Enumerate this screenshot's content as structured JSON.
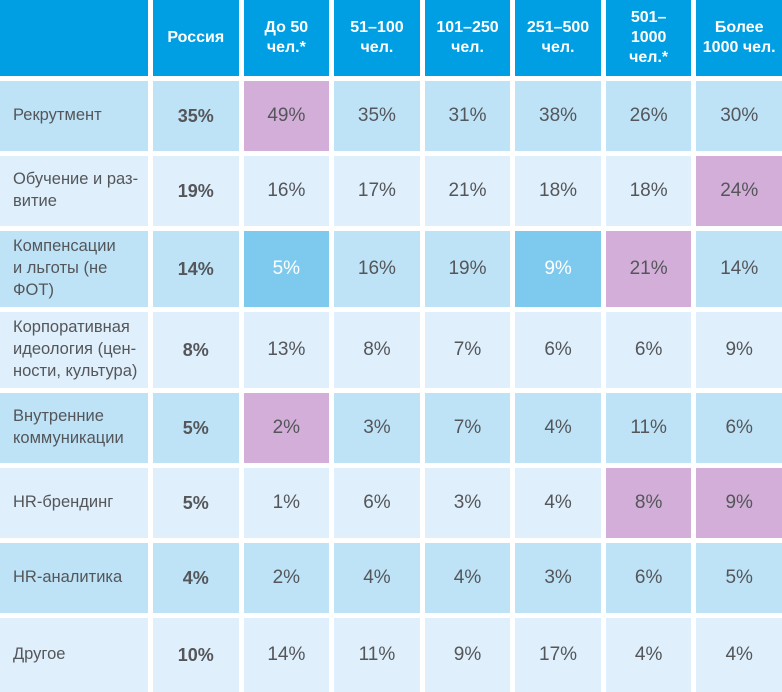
{
  "table": {
    "header": [
      "",
      "Россия",
      "До 50\nчел.*",
      "51–100\nчел.",
      "101–250\nчел.",
      "251–500\nчел.",
      "501–\n1000\nчел.*",
      "Более\n1000 чел."
    ],
    "rows": [
      {
        "label": "Рекрутмент",
        "values": [
          "35%",
          "49%",
          "35%",
          "31%",
          "38%",
          "26%",
          "30%"
        ]
      },
      {
        "label": "Обучение и раз-\nвитие",
        "values": [
          "19%",
          "16%",
          "17%",
          "21%",
          "18%",
          "18%",
          "24%"
        ]
      },
      {
        "label": "Компенсации\nи льготы (не\nФОТ)",
        "values": [
          "14%",
          "5%",
          "16%",
          "19%",
          "9%",
          "21%",
          "14%"
        ]
      },
      {
        "label": "Корпоративная\nидеология (цен-\nности, культура)",
        "values": [
          "8%",
          "13%",
          "8%",
          "7%",
          "6%",
          "6%",
          "9%"
        ]
      },
      {
        "label": "Внутренние\nкоммуникации",
        "values": [
          "5%",
          "2%",
          "3%",
          "7%",
          "4%",
          "11%",
          "6%"
        ]
      },
      {
        "label": "HR-брендинг",
        "values": [
          "5%",
          "1%",
          "6%",
          "3%",
          "4%",
          "8%",
          "9%"
        ]
      },
      {
        "label": "HR-аналитика",
        "values": [
          "4%",
          "2%",
          "4%",
          "4%",
          "3%",
          "6%",
          "5%"
        ]
      },
      {
        "label": "Другое",
        "values": [
          "10%",
          "14%",
          "11%",
          "9%",
          "17%",
          "4%",
          "4%"
        ]
      }
    ]
  },
  "colors": {
    "header_bg": "#009ee2",
    "row_dark": "#bee3f7",
    "row_light": "#dfeffb",
    "highlight_pink": "#d3aed8",
    "highlight_blue": "#7ecaee",
    "text": "#54565a",
    "header_text": "#ffffff"
  },
  "chart_data": {
    "type": "table",
    "title": "",
    "columns": [
      "Россия",
      "До 50 чел.*",
      "51–100 чел.",
      "101–250 чел.",
      "251–500 чел.",
      "501–1000 чел.*",
      "Более 1000 чел."
    ],
    "rows": [
      "Рекрутмент",
      "Обучение и развитие",
      "Компенсации и льготы (не ФОТ)",
      "Корпоративная идеология (ценности, культура)",
      "Внутренние коммуникации",
      "HR-брендинг",
      "HR-аналитика",
      "Другое"
    ],
    "values_percent": [
      [
        35,
        49,
        35,
        31,
        38,
        26,
        30
      ],
      [
        19,
        16,
        17,
        21,
        18,
        18,
        24
      ],
      [
        14,
        5,
        16,
        19,
        9,
        21,
        14
      ],
      [
        8,
        13,
        8,
        7,
        6,
        6,
        9
      ],
      [
        5,
        2,
        3,
        7,
        4,
        11,
        6
      ],
      [
        5,
        1,
        6,
        3,
        4,
        8,
        9
      ],
      [
        4,
        2,
        4,
        4,
        3,
        6,
        5
      ],
      [
        10,
        14,
        11,
        9,
        17,
        4,
        4
      ]
    ],
    "highlighted_pink_cells_row_col": [
      [
        0,
        1
      ],
      [
        1,
        6
      ],
      [
        2,
        5
      ],
      [
        4,
        1
      ],
      [
        5,
        5
      ],
      [
        5,
        6
      ]
    ],
    "highlighted_blue_cells_row_col": [
      [
        2,
        1
      ],
      [
        2,
        4
      ]
    ]
  }
}
